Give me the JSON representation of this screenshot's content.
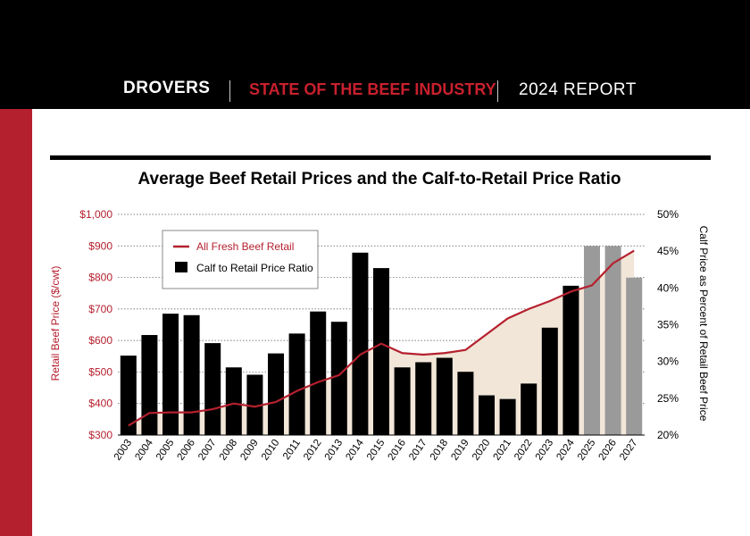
{
  "header": {
    "brand": "DROVERS",
    "publication": "STATE OF THE BEEF INDUSTRY",
    "report": "2024 REPORT",
    "colors": {
      "band": "#000000",
      "accent": "#b5202e"
    }
  },
  "chart_data": {
    "type": "bar",
    "title": "Average Beef Retail Prices and the Calf-to-Retail Price Ratio",
    "ylabel": "Retail Beef Price ($/cwt)",
    "y2label": "Calf Price as Percent of Retail Beef Price",
    "ylim": [
      300,
      1000
    ],
    "y2lim": [
      20,
      50
    ],
    "yticks": [
      "$300",
      "$400",
      "$500",
      "$600",
      "$700",
      "$800",
      "$900",
      "$1,000"
    ],
    "y2ticks": [
      "20%",
      "25%",
      "30%",
      "35%",
      "40%",
      "45%",
      "50%"
    ],
    "grid": true,
    "legend_position": "top-left",
    "categories": [
      "2003",
      "2004",
      "2005",
      "2006",
      "2007",
      "2008",
      "2009",
      "2010",
      "2011",
      "2012",
      "2013",
      "2014",
      "2015",
      "2016",
      "2017",
      "2018",
      "2019",
      "2020",
      "2021",
      "2022",
      "2023",
      "2024",
      "2025",
      "2026",
      "2027"
    ],
    "series": [
      {
        "name": "All Fresh Beef Retail",
        "type": "line",
        "axis": "left",
        "color": "#b5202e",
        "values": [
          330,
          370,
          372,
          372,
          382,
          400,
          390,
          405,
          440,
          468,
          490,
          555,
          590,
          560,
          555,
          560,
          570,
          620,
          670,
          700,
          725,
          755,
          775,
          845,
          885
        ]
      },
      {
        "name": "Calf to Retail Price Ratio",
        "type": "bar",
        "axis": "right",
        "color": "#000000",
        "projected_color": "#9a9a9a",
        "projected_from": "2025",
        "values": [
          30.8,
          33.6,
          36.5,
          36.3,
          32.5,
          29.2,
          28.2,
          31.1,
          33.8,
          36.8,
          35.4,
          44.8,
          42.7,
          29.2,
          29.9,
          30.5,
          28.6,
          25.4,
          24.9,
          27.0,
          34.6,
          40.3,
          45.7,
          45.7,
          41.4
        ]
      }
    ],
    "area_fill_color": "#f1e6d8"
  }
}
